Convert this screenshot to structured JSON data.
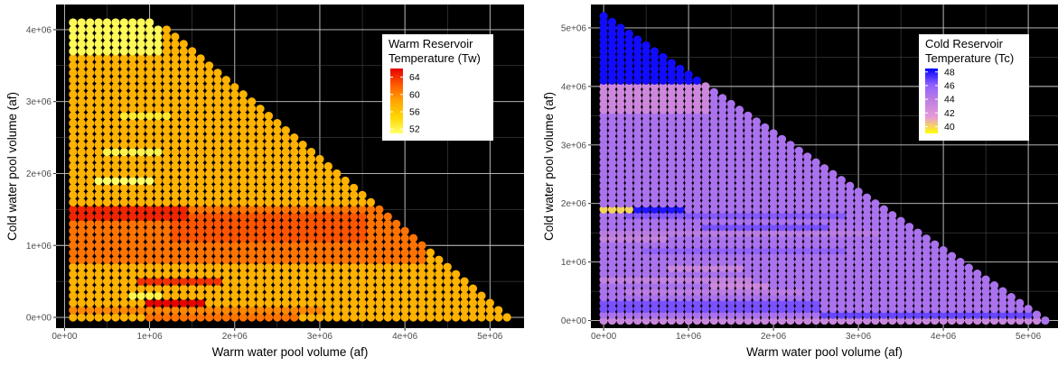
{
  "chart_data": [
    {
      "type": "scatter",
      "xlabel": "Warm water pool volume (af)",
      "ylabel": "Cold water pool volume (af)",
      "x_ticks": [
        "0e+00",
        "1e+06",
        "2e+06",
        "3e+06",
        "4e+06",
        "5e+06"
      ],
      "y_ticks": [
        "0e+00",
        "1e+06",
        "2e+06",
        "3e+06",
        "4e+06"
      ],
      "xlim": [
        -100000,
        5400000
      ],
      "ylim": [
        -150000,
        4350000
      ],
      "grid": true,
      "legend": {
        "title_line1": "Warm Reservoir",
        "title_line2": "Temperature (Tw)",
        "labels": [
          "64",
          "60",
          "56",
          "52"
        ],
        "values": [
          64,
          60,
          56,
          52
        ],
        "range": [
          51,
          66
        ],
        "colors": [
          "#ffff66",
          "#ffd700",
          "#ffa500",
          "#ff5a00",
          "#e60000"
        ],
        "position": "top-right"
      },
      "grid_spec": {
        "x_start": 100000,
        "x_step": 100000,
        "y_start": 0,
        "y_step": 100000,
        "y_max": 4100000,
        "total_max": 5200000,
        "top_row_x_max": 1000000
      },
      "base_value": 57.5,
      "bands": [
        {
          "y": [
            0,
            0
          ],
          "x": [
            1000000,
            2700000
          ],
          "value": 61
        },
        {
          "y": [
            100000,
            100000
          ],
          "x": [
            100000,
            3000000
          ],
          "value": 60
        },
        {
          "y": [
            200000,
            200000
          ],
          "x": [
            1000000,
            1600000
          ],
          "value": 66
        },
        {
          "y": [
            300000,
            300000
          ],
          "x": [
            800000,
            1100000
          ],
          "value": 52
        },
        {
          "y": [
            500000,
            500000
          ],
          "x": [
            900000,
            1800000
          ],
          "value": 64
        },
        {
          "y": [
            800000,
            1500000
          ],
          "x": [
            100000,
            4200000
          ],
          "value": 61
        },
        {
          "y": [
            1100000,
            1400000
          ],
          "x": [
            1300000,
            3500000
          ],
          "value": 62.5
        },
        {
          "y": [
            1400000,
            1500000
          ],
          "x": [
            100000,
            1400000
          ],
          "value": 64.5
        },
        {
          "y": [
            1900000,
            1900000
          ],
          "x": [
            400000,
            1000000
          ],
          "value": 51
        },
        {
          "y": [
            2300000,
            2300000
          ],
          "x": [
            500000,
            1100000
          ],
          "value": 52
        },
        {
          "y": [
            2800000,
            2800000
          ],
          "x": [
            700000,
            1200000
          ],
          "value": 53
        },
        {
          "y": [
            3700000,
            4100000
          ],
          "x": [
            100000,
            1100000
          ],
          "value": 51.5
        }
      ]
    },
    {
      "type": "scatter",
      "xlabel": "Warm water pool volume (af)",
      "ylabel": "Cold water pool volume (af)",
      "x_ticks": [
        "0e+00",
        "1e+06",
        "2e+06",
        "3e+06",
        "4e+06",
        "5e+06"
      ],
      "y_ticks": [
        "0e+00",
        "1e+06",
        "2e+06",
        "3e+06",
        "4e+06",
        "5e+06"
      ],
      "xlim": [
        -150000,
        5350000
      ],
      "ylim": [
        -130000,
        5400000
      ],
      "grid": true,
      "legend": {
        "title_line1": "Cold Reservoir",
        "title_line2": "Temperature (Tc)",
        "labels": [
          "48",
          "46",
          "44",
          "42",
          "40"
        ],
        "values": [
          48,
          46,
          44,
          42,
          40
        ],
        "range": [
          39,
          48.5
        ],
        "colors": [
          "#ffff00",
          "#e89ad8",
          "#c080e0",
          "#9060ff",
          "#0000ff"
        ],
        "position": "top-right"
      },
      "grid_spec": {
        "x_start": 0,
        "x_step": 100000,
        "y_start": 0,
        "y_step": 100000,
        "y_max": 5200000,
        "total_max": 5200000,
        "top_row_x_max": 0
      },
      "base_value": 44.8,
      "bands": [
        {
          "y": [
            0,
            0
          ],
          "x": [
            0,
            5100000
          ],
          "value": 43.2
        },
        {
          "y": [
            100000,
            100000
          ],
          "x": [
            2600000,
            5000000
          ],
          "value": 46.8
        },
        {
          "y": [
            200000,
            300000
          ],
          "x": [
            0,
            2500000
          ],
          "value": 46.5
        },
        {
          "y": [
            500000,
            500000
          ],
          "x": [
            300000,
            2300000
          ],
          "value": 44
        },
        {
          "y": [
            600000,
            600000
          ],
          "x": [
            1300000,
            1900000
          ],
          "value": 43
        },
        {
          "y": [
            700000,
            700000
          ],
          "x": [
            0,
            1700000
          ],
          "value": 43.5
        },
        {
          "y": [
            900000,
            900000
          ],
          "x": [
            800000,
            1600000
          ],
          "value": 43.2
        },
        {
          "y": [
            1200000,
            1200000
          ],
          "x": [
            500000,
            2800000
          ],
          "value": 46
        },
        {
          "y": [
            1400000,
            1400000
          ],
          "x": [
            0,
            700000
          ],
          "value": 43.5
        },
        {
          "y": [
            1500000,
            1500000
          ],
          "x": [
            0,
            3200000
          ],
          "value": 44
        },
        {
          "y": [
            1600000,
            1600000
          ],
          "x": [
            1200000,
            2600000
          ],
          "value": 46.5
        },
        {
          "y": [
            1800000,
            1800000
          ],
          "x": [
            300000,
            2800000
          ],
          "value": 46.3
        },
        {
          "y": [
            1900000,
            1900000
          ],
          "x": [
            0,
            300000
          ],
          "value": 40
        },
        {
          "y": [
            1900000,
            1900000
          ],
          "x": [
            400000,
            900000
          ],
          "value": 48
        },
        {
          "y": [
            3600000,
            4000000
          ],
          "x": [
            0,
            1200000
          ],
          "value": 43
        },
        {
          "y": [
            4100000,
            5200000
          ],
          "x": [
            0,
            1100000
          ],
          "value": 48.2
        }
      ]
    }
  ]
}
